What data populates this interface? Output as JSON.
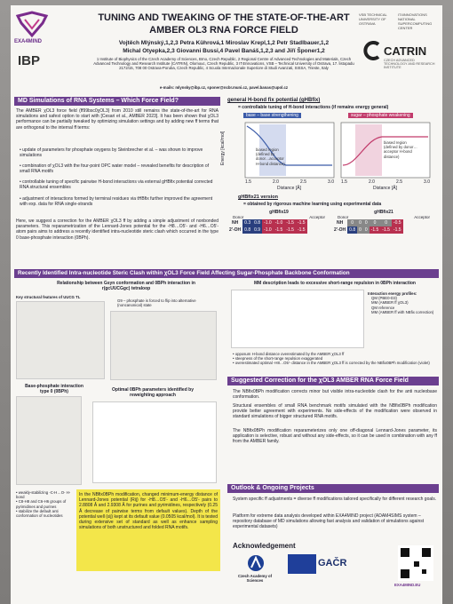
{
  "header": {
    "title_line1": "TUNING AND TWEAKING OF THE STATE-OF-THE-ART",
    "title_line2": "AMBER OL3 RNA FORCE FIELD",
    "authors_line1": "Vojtěch Mlýnský,1,2,3 Petra Kührová,1 Miroslav Krepl,1,2 Petr Stadlbauer,1,2",
    "authors_line2": "Michal Otyepka,2,3 Giovanni Bussi,4 Pavel Banáš,1,2,3 and Jiří Šponer1,2",
    "affiliations": "1 Institute of Biophysics of the Czech Academy of Sciences, Brno, Czech Republic, 2 Regional Centre of Advanced Technologies and Materials, Czech Advanced Technology and Research Institute (CATRIN), Olomouc, Czech Republic, 3 IT4Innovations, VSB – Technical University of Ostrava, 17. listopadu 2172/15, 708 00 Ostrava-Poruba, Czech Republic, 4 Scuola Internazionale Superiore di Studi Avanzati, SISSA, Trieste, Italy",
    "email": "e-mails: mlynsky@ibp.cz, sponer@ncbr.muni.cz, pavel.banas@upol.cz"
  },
  "logos": {
    "exa4mind": "EXA4MIND",
    "ibp": "IBP",
    "catrin": "CATRIN",
    "catrin_sub": "CZECH ADVANCED TECHNOLOGY AND RESEARCH INSTITUTE",
    "vsb": "VSB TECHNICAL UNIVERSITY OF OSTRAVA",
    "it4i": "IT4INNOVATIONS NATIONAL SUPERCOMPUTING CENTER"
  },
  "md": {
    "heading": "MD Simulations of RNA Systems – Which Force Field?",
    "intro": "The AMBER χOL3 force field (ff99bsc0χOL3) from 2010 still remains the state-of-the-art for RNA simulations and safest option to start with [Cesari et al., AMBER 2023]. It has been shown that χOL3 performance can be partially tweaked by optimizing simulation settings and by adding new ff terms that are orthogonal to the internal ff terms:",
    "bullets": [
      "update of parameters for phosphate oxygens by Steinbrecher et al. – was shown to improve simulations",
      "combination of χOL3 with the four-point OPC water model – revealed benefits for description of small RNA motifs",
      "controllable tuning of specific pairwise H-bond interactions via external gHBfix potential corrected RNA structural ensembles",
      "adjustment of interactions formed by terminal residues via tHBfix further improved the agreement with exp. data for RNA single-strands"
    ],
    "outro": "Here, we suggest a correction for the AMBER χOL3 ff by adding a simple adjustment of nonbonded parameters. This reparametrization of the Lennard-Jones potential for the -H8…O5′- and -H6…O5′- atom pairs aims to address a recently identified intra-nucleotide steric clash which occurred in the type 0 base-phosphate interaction (0BPh)."
  },
  "ghbfix": {
    "heading": "general H-bond fix potential (gHBfix)",
    "sub": "= controllable tuning of H-bond interactions (if remains energy general)",
    "left_label": "base – base strengthening",
    "right_label": "sugar – phosphate weakening",
    "left_box": "biased region (defined by donor…acceptor H-bond distance)",
    "right_box": "biased region (defined by donor…acceptor H-bond distance)",
    "y_axis": "Energy [kcal/mol]",
    "x_axis": "Distance [Å]",
    "xticks": [
      "1.5",
      "2.0",
      "2.5",
      "3.0"
    ],
    "g21_title": "gHBfix21 version",
    "g21_sub": "= obtained by rigorous machine learning using experimental data",
    "table_left_title": "gHBfix19",
    "table_right_title": "gHBfix21",
    "donor": "Donor",
    "acceptor": "Acceptor",
    "row_labels": [
      "NH",
      "2′-OH"
    ],
    "table_left": [
      [
        "0.3",
        "0.8",
        "-1.0",
        "-1.0",
        "-1.5",
        "-1.5"
      ],
      [
        "0.8",
        "0.9",
        "-1.0",
        "-1.5",
        "-1.5",
        "-1.5"
      ]
    ],
    "table_right": [
      [
        "0",
        "0",
        "0",
        "0",
        "0",
        "-0.5"
      ],
      [
        "0.8",
        "0",
        "0",
        "-1.5",
        "-1.5",
        "-1.5"
      ]
    ]
  },
  "clash": {
    "heading": "Recently Identified Intra-nucleotide Steric Clash within χOL3 Force Field Affecting Sugar-Phosphate Backbone Conformation",
    "fig1_title": "Relationship between Gsyn conformation and 0BPh interaction in r(gcUUCGgc) tetraloop",
    "fig1_label": "Key structural features of UUCG TL",
    "fig1_note": "G9 – phosphate is forced to flip into alternative (noncanonical) state",
    "bph_title": "Base-phosphate interaction type 0 (0BPh)",
    "opt_title": "Optimal 0BPh parameters identified by reweighting approach",
    "bullets": [
      "weakly-stabilizing -C-H…O- H-bond",
      "C8-H8 and C6-H6 groups of pyrimidines and purines",
      "stabilize the default anti conformation of nucleotides"
    ],
    "yellow": "In the NBfix0BPh modification, changed minimum-energy distance of Lennard-Jones potential (Rij) for -H8…O5′- and -H6…O5′- pairs to 2.8808 Å and 2.9308 Å for purines and pyrimidines, respectively (0.25 Å decrease of pairwise terms from default values). Depth of the potential well (εij) kept at its default value (0.0505 kcal/mol). It is tested during extensive set of standard as well as enhance sampling simulations of both unstructured and folded RNA motifs."
  },
  "mm": {
    "heading": "MM description leads to excessive short-range repulsion in 0BPh interaction",
    "legend": [
      "Interaction energy profiles:",
      "QM (PBE0-D3)",
      "MM (AMBER ff χOL3)",
      "QM reference",
      "MM (AMBER ff with NBfix correction)"
    ],
    "bullets": [
      "opposum H-bond distance overestimated by the AMBER χOL3 ff",
      "steepness of the short-range repulsion exaggerated",
      "overestimated optimal -H8…O5′- distance in the AMBER χOL3 ff is corrected by the NBfix0BPh modification (violet)"
    ]
  },
  "correction": {
    "heading": "Suggested Correction for the χOL3 AMBER RNA Force Field",
    "p1": "The NBfix0BPh modification corrects minor but visible intra-nucleotide clash for the anti nucleobase conformation.",
    "p2": "Structural ensembles of small RNA benchmark motifs simulated with the NBfix0BPh modification provide better agreement with experiments. No side-effects of the modification were observed in standard simulations of bigger structured RNA motifs.",
    "p3": "The NBfix0BPh modification reparameterizes only one off-diagonal Lennard-Jones parameter, its application is selective, robust and without any side-effects, so it can be used in combination with any ff from the AMBER family."
  },
  "outlook": {
    "heading": "Outlook & Ongoing Projects",
    "p1": "System specific ff adjustments = diverse ff modifications tailored specifically for different research goals.",
    "p2": "Platform for extreme data analysis developed within EXA4MIND project (ADAM4SIMS system – repository database of MD simulations allowing fast analysis and validation of simulations against experimental datasets)"
  },
  "ack": {
    "heading": "Acknowledgement",
    "logos": [
      "Czech Academy of Sciences",
      "GAČR",
      "EXA4MIND.EU"
    ]
  }
}
